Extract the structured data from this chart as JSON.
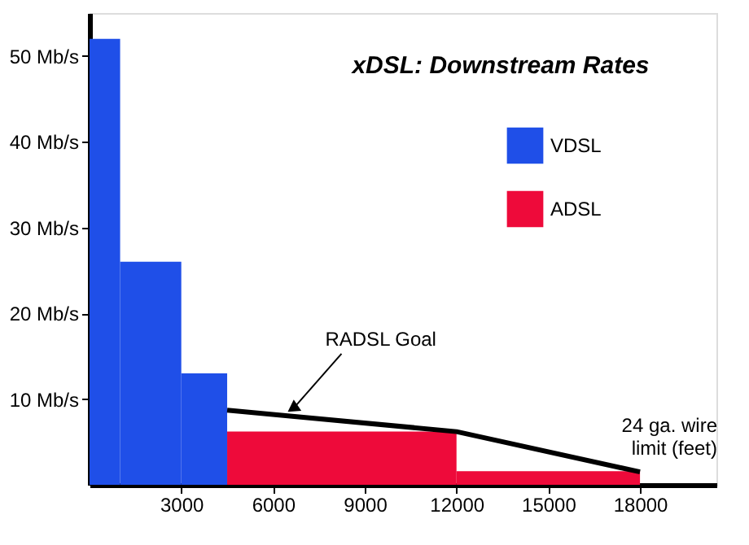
{
  "chart_data": {
    "type": "histogram",
    "title": "xDSL: Downstream Rates",
    "xlabel": "24 ga. wire limit (feet)",
    "bins": [
      0,
      1000,
      3000,
      4500,
      12000,
      18000
    ],
    "series": [
      {
        "name": "VDSL",
        "color": "#1f4fe8",
        "values": [
          52,
          26,
          13,
          null,
          null
        ]
      },
      {
        "name": "ADSL",
        "color": "#ee0a3a",
        "values": [
          null,
          null,
          null,
          6.2,
          1.6
        ]
      },
      {
        "name": "RADSL Goal",
        "type": "line",
        "color": "#000000",
        "x": [
          4500,
          12000,
          18000
        ],
        "values": [
          8.7,
          6.2,
          1.5
        ]
      }
    ],
    "xlim": [
      0,
      20500
    ],
    "xticks": [
      3000,
      6000,
      9000,
      12000,
      15000,
      18000
    ],
    "ylim": [
      0,
      55
    ],
    "yticks": [
      {
        "value": 10,
        "label": "10 Mb/s"
      },
      {
        "value": 20,
        "label": "20 Mb/s"
      },
      {
        "value": 30,
        "label": "30 Mb/s"
      },
      {
        "value": 40,
        "label": "40 Mb/s"
      },
      {
        "value": 50,
        "label": "50 Mb/s"
      }
    ],
    "grid": false,
    "legend": "top right"
  }
}
